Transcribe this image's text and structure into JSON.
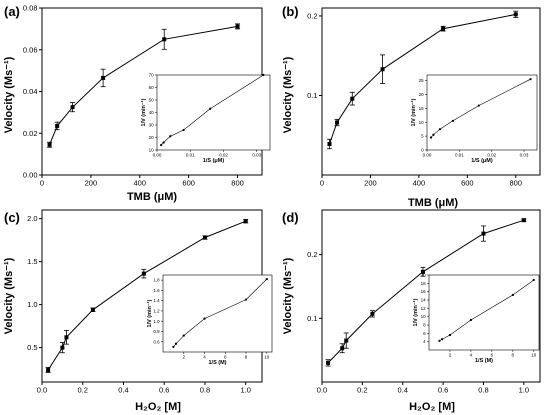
{
  "chart_data": [
    {
      "panel": "(a)",
      "type": "line",
      "xlabel": "TMB (μM)",
      "ylabel": "Velocity (Ms⁻¹)",
      "xlim": [
        0,
        900
      ],
      "ylim": [
        0,
        0.08
      ],
      "xticks": [
        "0",
        "200",
        "400",
        "600",
        "800"
      ],
      "yticks": [
        "0.00",
        "0.02",
        "0.04",
        "0.06",
        "0.08"
      ],
      "x": [
        31,
        62,
        125,
        250,
        500,
        800
      ],
      "y": [
        0.0145,
        0.0235,
        0.0325,
        0.0465,
        0.065,
        0.0712
      ],
      "err": [
        0.0012,
        0.0018,
        0.0022,
        0.0042,
        0.0048,
        0.0012
      ],
      "inset": {
        "type": "line",
        "xlabel": "1/S (μM)",
        "ylabel": "1/V (min⁻¹)",
        "xlim": [
          0,
          0.034
        ],
        "ylim": [
          10,
          70
        ],
        "xticks": [
          "0.00",
          "0.01",
          "0.02",
          "0.03"
        ],
        "yticks": [
          "10",
          "20",
          "30",
          "40",
          "50",
          "60",
          "70"
        ],
        "x": [
          0.00125,
          0.002,
          0.004,
          0.008,
          0.016,
          0.032
        ],
        "y": [
          14,
          16,
          21,
          26,
          43,
          70
        ]
      }
    },
    {
      "panel": "(b)",
      "type": "line",
      "xlabel": "TMB (μM)",
      "ylabel": "Velocity (Ms⁻¹)",
      "xlim": [
        0,
        900
      ],
      "ylim": [
        0,
        0.21
      ],
      "xticks": [
        "0",
        "200",
        "400",
        "600",
        "800"
      ],
      "yticks": [
        "0.1",
        "0.2"
      ],
      "x": [
        31,
        62,
        125,
        250,
        500,
        800
      ],
      "y": [
        0.039,
        0.066,
        0.096,
        0.133,
        0.184,
        0.202
      ],
      "err": [
        0.006,
        0.004,
        0.008,
        0.018,
        0.003,
        0.004
      ],
      "inset": {
        "type": "line",
        "xlabel": "1/S (μM)",
        "ylabel": "1/V (min⁻¹)",
        "xlim": [
          0,
          0.034
        ],
        "ylim": [
          0,
          27
        ],
        "xticks": [
          "0.00",
          "0.01",
          "0.02",
          "0.03"
        ],
        "yticks": [
          "0",
          "5",
          "10",
          "15",
          "20",
          "25"
        ],
        "x": [
          0.00125,
          0.002,
          0.004,
          0.008,
          0.016,
          0.032
        ],
        "y": [
          4.5,
          5.5,
          7.5,
          10.5,
          16,
          25.5
        ]
      }
    },
    {
      "panel": "(c)",
      "type": "line",
      "xlabel": "H₂O₂ [M]",
      "ylabel": "Velocity (Ms⁻¹)",
      "xlim": [
        0,
        1.08
      ],
      "ylim": [
        0.1,
        2.1
      ],
      "xticks": [
        "0.0",
        "0.2",
        "0.4",
        "0.6",
        "0.8",
        "1.0"
      ],
      "yticks": [
        "0.5",
        "1.0",
        "1.5",
        "2.0"
      ],
      "x": [
        0.03,
        0.1,
        0.12,
        0.25,
        0.5,
        0.8,
        1.0
      ],
      "y": [
        0.24,
        0.5,
        0.62,
        0.94,
        1.36,
        1.78,
        1.97
      ],
      "err": [
        0.03,
        0.06,
        0.08,
        0.02,
        0.05,
        0.02,
        0.02
      ],
      "inset": {
        "type": "line",
        "xlabel": "1/S (M)",
        "ylabel": "1/V (min⁻¹)",
        "xlim": [
          0,
          10.5
        ],
        "ylim": [
          0.4,
          1.9
        ],
        "xticks": [
          "2",
          "4",
          "6",
          "8",
          "10"
        ],
        "yticks": [
          "0.6",
          "0.8",
          "1.0",
          "1.2",
          "1.4",
          "1.6",
          "1.8"
        ],
        "x": [
          1,
          1.25,
          2,
          4,
          8,
          10
        ],
        "y": [
          0.5,
          0.56,
          0.72,
          1.05,
          1.42,
          1.82
        ]
      }
    },
    {
      "panel": "(d)",
      "type": "line",
      "xlabel": "H₂O₂ [M]",
      "ylabel": "Velocity (Ms⁻¹)",
      "xlim": [
        0,
        1.08
      ],
      "ylim": [
        0,
        0.27
      ],
      "xticks": [
        "0.0",
        "0.2",
        "0.4",
        "0.6",
        "0.8",
        "1.0"
      ],
      "yticks": [
        "0.1",
        "0.2"
      ],
      "x": [
        0.03,
        0.1,
        0.12,
        0.25,
        0.5,
        0.8,
        1.0
      ],
      "y": [
        0.03,
        0.053,
        0.065,
        0.107,
        0.173,
        0.233,
        0.254
      ],
      "err": [
        0.005,
        0.007,
        0.012,
        0.005,
        0.007,
        0.012,
        0.002
      ],
      "inset": {
        "type": "line",
        "xlabel": "1/S (M)",
        "ylabel": "1/V (min⁻¹)",
        "xlim": [
          0,
          10.5
        ],
        "ylim": [
          2,
          20
        ],
        "xticks": [
          "2",
          "4",
          "6",
          "8",
          "10"
        ],
        "yticks": [
          "4",
          "6",
          "8",
          "10",
          "12",
          "14",
          "16",
          "18",
          "20"
        ],
        "x": [
          1,
          1.25,
          2,
          4,
          8,
          10
        ],
        "y": [
          4.2,
          4.6,
          5.6,
          9.2,
          15.2,
          18.8
        ]
      }
    }
  ]
}
